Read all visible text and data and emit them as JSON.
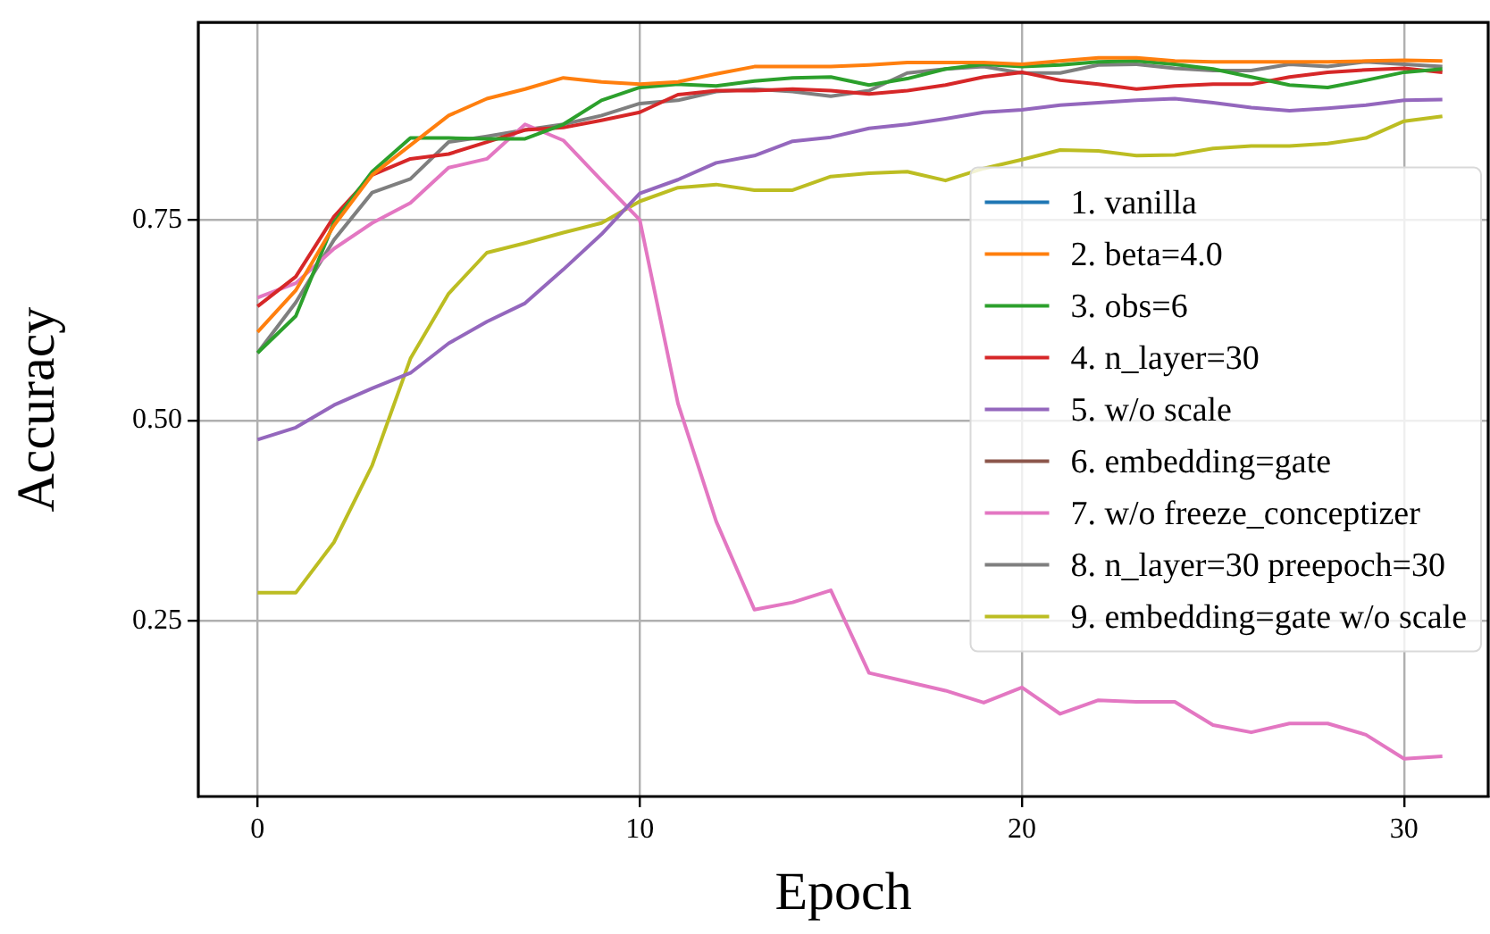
{
  "chart_data": {
    "type": "line",
    "xlabel": "Epoch",
    "ylabel": "Accuracy",
    "x": [
      0,
      1,
      2,
      3,
      4,
      5,
      6,
      7,
      8,
      9,
      10,
      11,
      12,
      13,
      14,
      15,
      16,
      17,
      18,
      19,
      20,
      21,
      22,
      23,
      24,
      25,
      26,
      27,
      28,
      29,
      30,
      31
    ],
    "xlim": [
      -1.55,
      32.2
    ],
    "xticks": [
      0,
      10,
      20,
      30
    ],
    "ylim": [
      0.031,
      0.996
    ],
    "yticks": [
      {
        "value": 0.25,
        "label": "0.25"
      },
      {
        "value": 0.5,
        "label": "0.50"
      },
      {
        "value": 0.75,
        "label": "0.75"
      }
    ],
    "grid": true,
    "legend": "center right",
    "line_style": "solid",
    "series": [
      {
        "name": "1. vanilla",
        "color": "#1f77b4",
        "values": [
          null,
          null,
          null,
          null,
          null,
          null,
          null,
          null,
          null,
          null,
          null,
          null,
          null,
          null,
          null,
          null,
          null,
          null,
          null,
          null,
          null,
          null,
          null,
          null,
          null,
          null,
          null,
          null,
          null,
          null,
          null,
          null
        ]
      },
      {
        "name": "2. beta=4.0",
        "color": "#ff7f0e",
        "values": [
          0.61,
          0.662,
          0.743,
          0.806,
          0.843,
          0.88,
          0.901,
          0.913,
          0.927,
          0.922,
          0.919,
          0.922,
          0.932,
          0.941,
          0.941,
          0.941,
          0.943,
          0.946,
          0.946,
          0.946,
          0.944,
          0.948,
          0.952,
          0.952,
          0.948,
          0.947,
          0.947,
          0.947,
          0.947,
          0.948,
          0.949,
          0.948
        ]
      },
      {
        "name": "3. obs=6",
        "color": "#2ca02c",
        "values": [
          0.584,
          0.63,
          0.747,
          0.81,
          0.852,
          0.852,
          0.851,
          0.851,
          0.869,
          0.899,
          0.915,
          0.919,
          0.917,
          0.923,
          0.927,
          0.928,
          0.918,
          0.926,
          0.938,
          0.944,
          0.941,
          0.943,
          0.947,
          0.948,
          0.944,
          0.938,
          0.928,
          0.918,
          0.915,
          0.924,
          0.934,
          0.938
        ]
      },
      {
        "name": "4. n_layer=30",
        "color": "#d62728",
        "values": [
          0.642,
          0.679,
          0.754,
          0.806,
          0.826,
          0.832,
          0.847,
          0.862,
          0.865,
          0.874,
          0.884,
          0.906,
          0.911,
          0.911,
          0.913,
          0.911,
          0.907,
          0.911,
          0.918,
          0.928,
          0.934,
          0.924,
          0.919,
          0.913,
          0.917,
          0.919,
          0.919,
          0.928,
          0.934,
          0.937,
          0.939,
          0.934
        ]
      },
      {
        "name": "5. w/o scale",
        "color": "#9467bd",
        "values": [
          0.476,
          0.491,
          0.519,
          0.54,
          0.559,
          0.596,
          0.623,
          0.646,
          0.688,
          0.732,
          0.783,
          0.8,
          0.821,
          0.83,
          0.848,
          0.853,
          0.864,
          0.869,
          0.876,
          0.884,
          0.887,
          0.893,
          0.896,
          0.899,
          0.901,
          0.896,
          0.89,
          0.886,
          0.889,
          0.893,
          0.899,
          0.9
        ]
      },
      {
        "name": "6. embedding=gate",
        "color": "#8c564b",
        "values": [
          null,
          null,
          null,
          null,
          null,
          null,
          null,
          null,
          null,
          null,
          null,
          null,
          null,
          null,
          null,
          null,
          null,
          null,
          null,
          null,
          null,
          null,
          null,
          null,
          null,
          null,
          null,
          null,
          null,
          null,
          null,
          null
        ]
      },
      {
        "name": "7. w/o freeze_conceptizer",
        "color": "#e377c2",
        "values": [
          0.653,
          0.671,
          0.714,
          0.746,
          0.771,
          0.815,
          0.826,
          0.869,
          0.849,
          0.799,
          0.75,
          0.521,
          0.374,
          0.264,
          0.273,
          0.288,
          0.185,
          0.174,
          0.163,
          0.148,
          0.167,
          0.134,
          0.151,
          0.149,
          0.149,
          0.12,
          0.111,
          0.122,
          0.122,
          0.108,
          0.078,
          0.081
        ]
      },
      {
        "name": "8. n_layer=30 preepoch=30",
        "color": "#7f7f7f",
        "values": [
          0.584,
          0.647,
          0.725,
          0.784,
          0.801,
          0.847,
          0.854,
          0.862,
          0.869,
          0.88,
          0.895,
          0.899,
          0.91,
          0.913,
          0.91,
          0.904,
          0.911,
          0.933,
          0.938,
          0.941,
          0.933,
          0.933,
          0.943,
          0.944,
          0.939,
          0.936,
          0.936,
          0.944,
          0.941,
          0.947,
          0.944,
          0.941
        ]
      },
      {
        "name": "9. embedding=gate w/o scale",
        "color": "#bcbd22",
        "values": [
          0.285,
          0.285,
          0.348,
          0.444,
          0.577,
          0.658,
          0.709,
          0.721,
          0.734,
          0.746,
          0.773,
          0.79,
          0.794,
          0.787,
          0.787,
          0.804,
          0.808,
          0.81,
          0.799,
          0.814,
          0.825,
          0.837,
          0.836,
          0.83,
          0.831,
          0.839,
          0.842,
          0.842,
          0.845,
          0.852,
          0.873,
          0.879
        ]
      }
    ]
  }
}
